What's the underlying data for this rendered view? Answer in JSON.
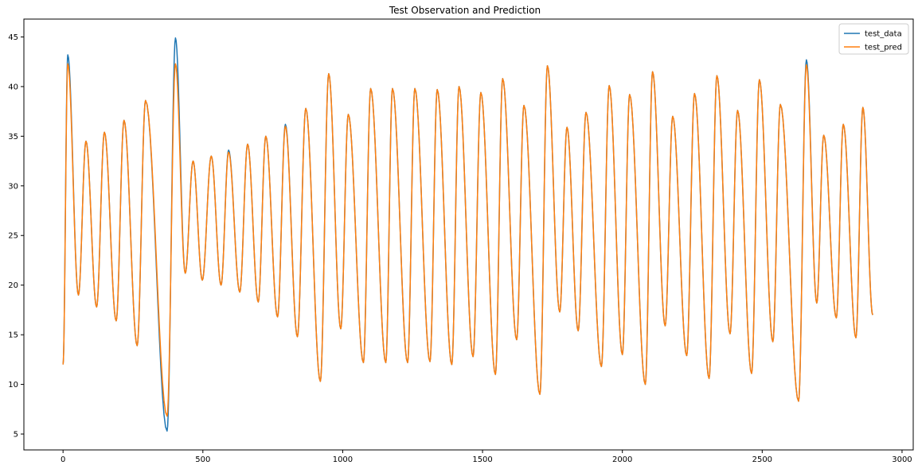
{
  "chart_data": {
    "type": "line",
    "title": "Test Observation and Prediction",
    "xlabel": "",
    "ylabel": "",
    "xlim": [
      -140,
      3040
    ],
    "ylim": [
      3.4,
      46.8
    ],
    "xticks": [
      0,
      500,
      1000,
      1500,
      2000,
      2500,
      3000
    ],
    "yticks": [
      5,
      10,
      15,
      20,
      25,
      30,
      35,
      40,
      45
    ],
    "grid": false,
    "legend_position": "top-right",
    "colors": {
      "test_data": "#1f77b4",
      "test_pred": "#ff7f0e"
    },
    "series": [
      {
        "name": "test_data",
        "points": [
          [
            0,
            12.0
          ],
          [
            17,
            43.2
          ],
          [
            55,
            19.0
          ],
          [
            82,
            34.5
          ],
          [
            120,
            17.8
          ],
          [
            148,
            35.4
          ],
          [
            190,
            16.4
          ],
          [
            218,
            36.6
          ],
          [
            265,
            13.9
          ],
          [
            295,
            38.6
          ],
          [
            372,
            5.3
          ],
          [
            402,
            44.9
          ],
          [
            437,
            21.2
          ],
          [
            465,
            32.5
          ],
          [
            498,
            20.5
          ],
          [
            530,
            33.0
          ],
          [
            565,
            20.0
          ],
          [
            592,
            33.6
          ],
          [
            632,
            19.3
          ],
          [
            660,
            34.2
          ],
          [
            698,
            18.3
          ],
          [
            725,
            35.0
          ],
          [
            767,
            16.8
          ],
          [
            795,
            36.2
          ],
          [
            838,
            14.8
          ],
          [
            868,
            37.8
          ],
          [
            920,
            10.3
          ],
          [
            950,
            41.3
          ],
          [
            993,
            15.6
          ],
          [
            1020,
            37.2
          ],
          [
            1074,
            12.2
          ],
          [
            1100,
            39.8
          ],
          [
            1154,
            12.2
          ],
          [
            1178,
            39.8
          ],
          [
            1232,
            12.2
          ],
          [
            1258,
            39.8
          ],
          [
            1312,
            12.3
          ],
          [
            1338,
            39.7
          ],
          [
            1390,
            12.0
          ],
          [
            1416,
            40.0
          ],
          [
            1466,
            12.8
          ],
          [
            1494,
            39.4
          ],
          [
            1546,
            11.0
          ],
          [
            1572,
            40.8
          ],
          [
            1622,
            14.5
          ],
          [
            1648,
            38.1
          ],
          [
            1705,
            9.0
          ],
          [
            1732,
            42.1
          ],
          [
            1776,
            17.3
          ],
          [
            1802,
            35.9
          ],
          [
            1842,
            15.4
          ],
          [
            1870,
            37.4
          ],
          [
            1925,
            11.8
          ],
          [
            1953,
            40.1
          ],
          [
            2000,
            13.0
          ],
          [
            2026,
            39.2
          ],
          [
            2082,
            10.0
          ],
          [
            2108,
            41.5
          ],
          [
            2153,
            15.9
          ],
          [
            2180,
            37.0
          ],
          [
            2230,
            12.9
          ],
          [
            2258,
            39.3
          ],
          [
            2310,
            10.6
          ],
          [
            2338,
            41.1
          ],
          [
            2385,
            15.1
          ],
          [
            2412,
            37.6
          ],
          [
            2462,
            11.1
          ],
          [
            2490,
            40.7
          ],
          [
            2538,
            14.3
          ],
          [
            2565,
            38.2
          ],
          [
            2630,
            8.3
          ],
          [
            2658,
            42.7
          ],
          [
            2695,
            18.2
          ],
          [
            2720,
            35.1
          ],
          [
            2765,
            16.7
          ],
          [
            2790,
            36.2
          ],
          [
            2835,
            14.7
          ],
          [
            2860,
            37.9
          ],
          [
            2895,
            17.0
          ]
        ]
      },
      {
        "name": "test_pred",
        "points": [
          [
            0,
            12.0
          ],
          [
            17,
            42.3
          ],
          [
            55,
            19.0
          ],
          [
            82,
            34.5
          ],
          [
            120,
            17.8
          ],
          [
            148,
            35.4
          ],
          [
            190,
            16.4
          ],
          [
            218,
            36.6
          ],
          [
            265,
            13.9
          ],
          [
            295,
            38.6
          ],
          [
            372,
            6.8
          ],
          [
            402,
            42.3
          ],
          [
            437,
            21.2
          ],
          [
            465,
            32.5
          ],
          [
            498,
            20.5
          ],
          [
            530,
            33.0
          ],
          [
            565,
            20.0
          ],
          [
            592,
            33.4
          ],
          [
            632,
            19.3
          ],
          [
            660,
            34.2
          ],
          [
            698,
            18.3
          ],
          [
            725,
            35.0
          ],
          [
            767,
            16.8
          ],
          [
            795,
            36.0
          ],
          [
            838,
            14.8
          ],
          [
            868,
            37.8
          ],
          [
            920,
            10.3
          ],
          [
            950,
            41.3
          ],
          [
            993,
            15.6
          ],
          [
            1020,
            37.2
          ],
          [
            1074,
            12.2
          ],
          [
            1100,
            39.8
          ],
          [
            1154,
            12.2
          ],
          [
            1178,
            39.8
          ],
          [
            1232,
            12.2
          ],
          [
            1258,
            39.8
          ],
          [
            1312,
            12.3
          ],
          [
            1338,
            39.7
          ],
          [
            1390,
            12.0
          ],
          [
            1416,
            40.0
          ],
          [
            1466,
            12.8
          ],
          [
            1494,
            39.4
          ],
          [
            1546,
            11.0
          ],
          [
            1572,
            40.8
          ],
          [
            1622,
            14.5
          ],
          [
            1648,
            38.1
          ],
          [
            1705,
            9.0
          ],
          [
            1732,
            42.1
          ],
          [
            1776,
            17.3
          ],
          [
            1802,
            35.9
          ],
          [
            1842,
            15.4
          ],
          [
            1870,
            37.4
          ],
          [
            1925,
            11.8
          ],
          [
            1953,
            40.1
          ],
          [
            2000,
            13.0
          ],
          [
            2026,
            39.2
          ],
          [
            2082,
            10.0
          ],
          [
            2108,
            41.5
          ],
          [
            2153,
            15.9
          ],
          [
            2180,
            37.0
          ],
          [
            2230,
            12.9
          ],
          [
            2258,
            39.3
          ],
          [
            2310,
            10.6
          ],
          [
            2338,
            41.1
          ],
          [
            2385,
            15.1
          ],
          [
            2412,
            37.6
          ],
          [
            2462,
            11.1
          ],
          [
            2490,
            40.7
          ],
          [
            2538,
            14.3
          ],
          [
            2565,
            38.2
          ],
          [
            2630,
            8.3
          ],
          [
            2658,
            42.2
          ],
          [
            2695,
            18.2
          ],
          [
            2720,
            35.1
          ],
          [
            2765,
            16.7
          ],
          [
            2790,
            36.2
          ],
          [
            2835,
            14.7
          ],
          [
            2860,
            37.9
          ],
          [
            2895,
            17.0
          ]
        ]
      }
    ]
  }
}
